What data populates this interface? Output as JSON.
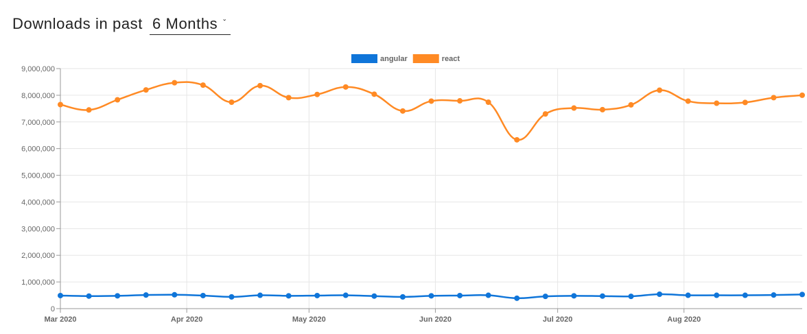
{
  "header": {
    "label": "Downloads in past",
    "period_value": "6 Months",
    "chevron_icon": "chevron-down-icon"
  },
  "chart_data": {
    "type": "line",
    "ylim": [
      0,
      9000000
    ],
    "yticks": [
      0,
      1000000,
      2000000,
      3000000,
      4000000,
      5000000,
      6000000,
      7000000,
      8000000,
      9000000
    ],
    "ytick_labels": [
      "0",
      "1,000,000",
      "2,000,000",
      "3,000,000",
      "4,000,000",
      "5,000,000",
      "6,000,000",
      "7,000,000",
      "8,000,000",
      "9,000,000"
    ],
    "xlim": [
      "2020-03-01",
      "2020-08-30"
    ],
    "xticks": [
      "2020-03-01",
      "2020-04-01",
      "2020-05-01",
      "2020-06-01",
      "2020-07-01",
      "2020-08-01"
    ],
    "xtick_labels": [
      "Mar 2020",
      "Apr 2020",
      "May 2020",
      "Jun 2020",
      "Jul 2020",
      "Aug 2020"
    ],
    "grid": true,
    "legend_position": "top",
    "x": [
      "2020-03-01",
      "2020-03-08",
      "2020-03-15",
      "2020-03-22",
      "2020-03-29",
      "2020-04-05",
      "2020-04-12",
      "2020-04-19",
      "2020-04-26",
      "2020-05-03",
      "2020-05-10",
      "2020-05-17",
      "2020-05-24",
      "2020-05-31",
      "2020-06-07",
      "2020-06-14",
      "2020-06-21",
      "2020-06-28",
      "2020-07-05",
      "2020-07-12",
      "2020-07-19",
      "2020-07-26",
      "2020-08-02",
      "2020-08-09",
      "2020-08-16",
      "2020-08-23",
      "2020-08-30"
    ],
    "series": [
      {
        "name": "angular",
        "color": "#0f75d9",
        "values": [
          490000,
          470000,
          480000,
          510000,
          520000,
          490000,
          440000,
          500000,
          480000,
          490000,
          500000,
          470000,
          440000,
          480000,
          490000,
          500000,
          390000,
          460000,
          480000,
          470000,
          460000,
          540000,
          500000,
          500000,
          500000,
          510000,
          530000
        ]
      },
      {
        "name": "react",
        "color": "#ff8a24",
        "values": [
          7650000,
          7450000,
          7830000,
          8200000,
          8470000,
          8380000,
          7740000,
          8360000,
          7910000,
          8030000,
          8310000,
          8040000,
          7410000,
          7780000,
          7790000,
          7740000,
          6330000,
          7300000,
          7520000,
          7460000,
          7640000,
          8190000,
          7780000,
          7700000,
          7730000,
          7910000,
          8000000
        ]
      }
    ]
  }
}
